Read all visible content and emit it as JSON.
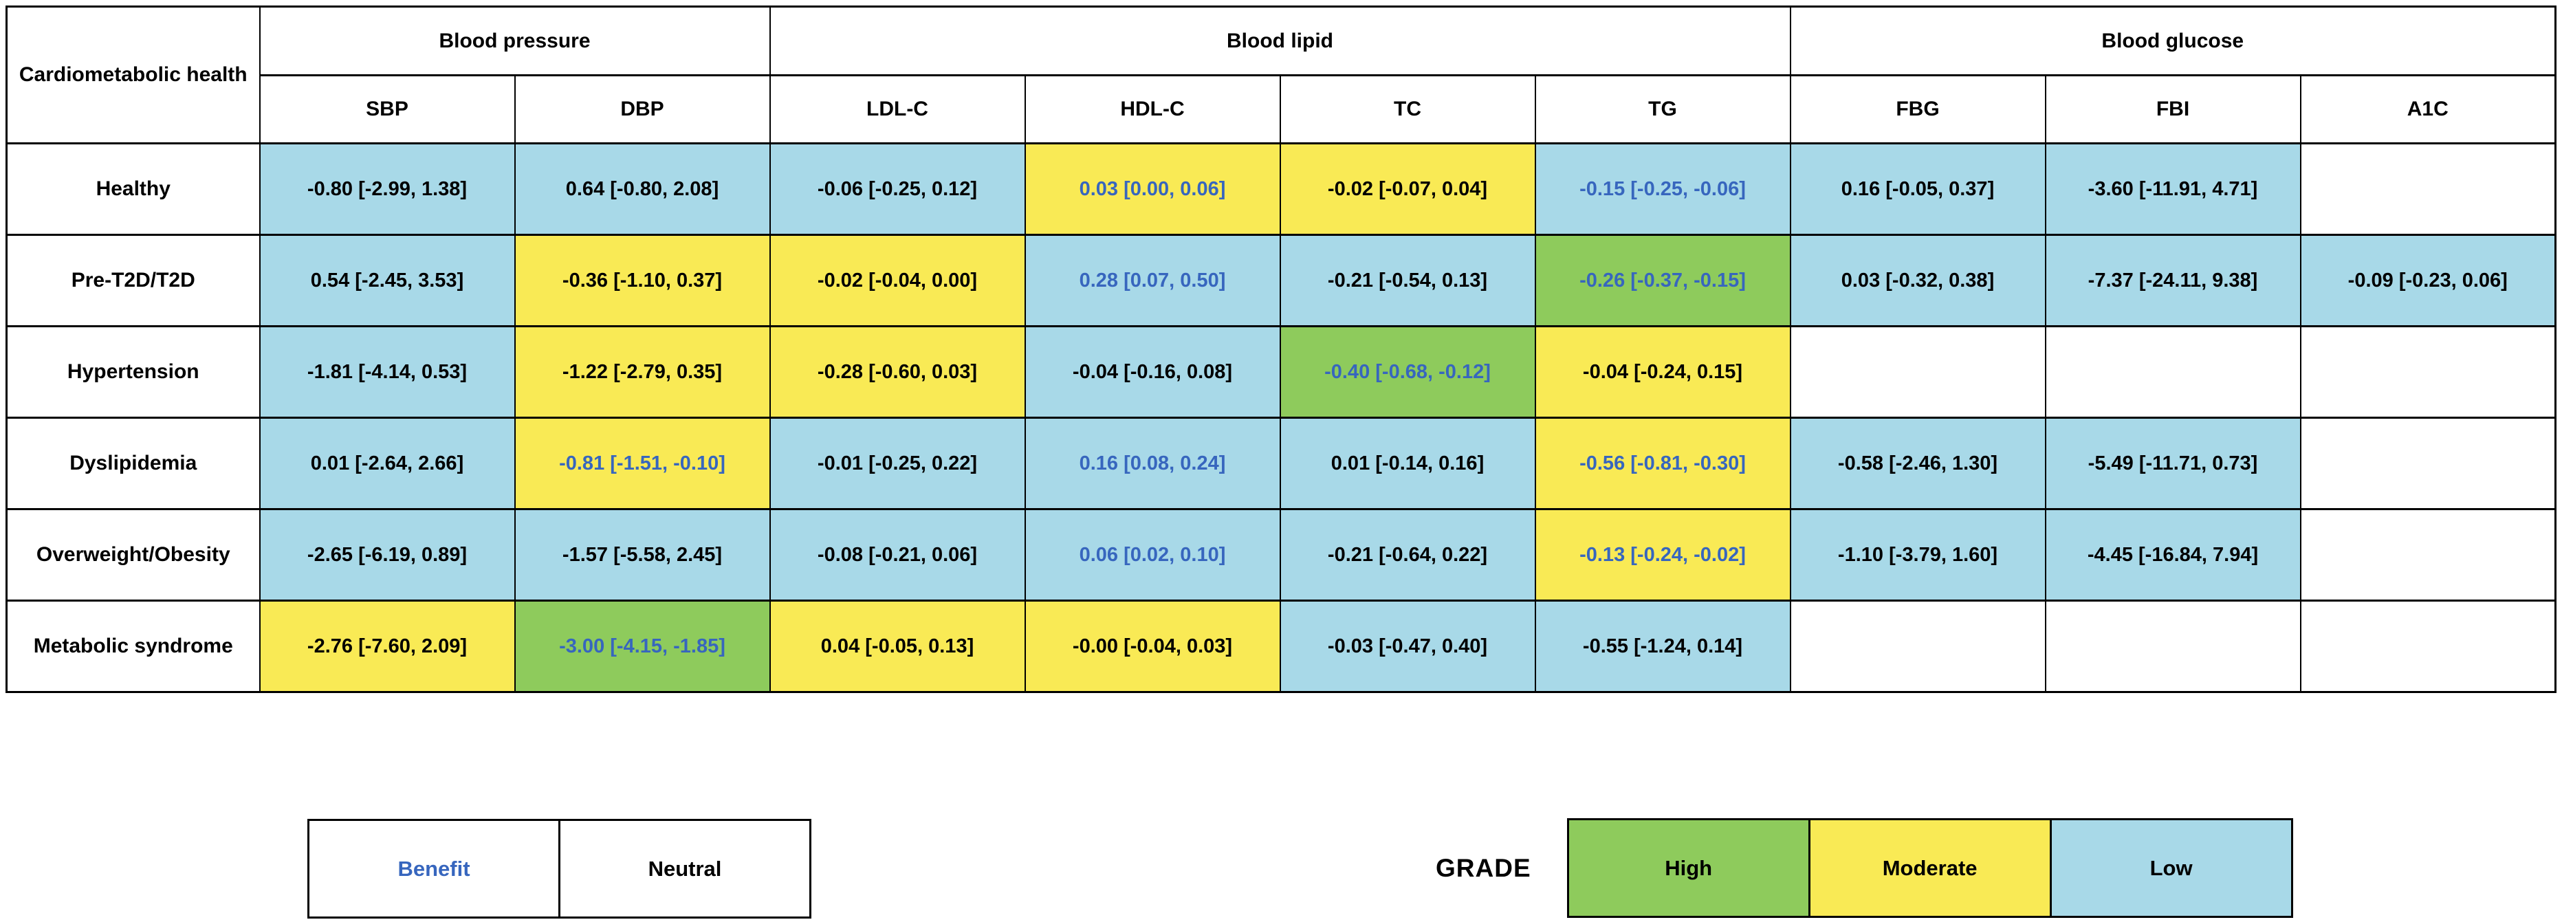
{
  "chart_data": {
    "type": "table",
    "corner_header": "Cardiometabolic health",
    "column_groups": [
      {
        "label": "Blood pressure",
        "span": 2
      },
      {
        "label": "Blood lipid",
        "span": 4
      },
      {
        "label": "Blood glucose",
        "span": 3
      }
    ],
    "columns": [
      "SBP",
      "DBP",
      "LDL-C",
      "HDL-C",
      "TC",
      "TG",
      "FBG",
      "FBI",
      "A1C"
    ],
    "rows": [
      {
        "label": "Healthy",
        "cells": [
          {
            "text": "-0.80 [-2.99, 1.38]",
            "grade": "low",
            "effect": "neutral"
          },
          {
            "text": "0.64 [-0.80, 2.08]",
            "grade": "low",
            "effect": "neutral"
          },
          {
            "text": "-0.06 [-0.25, 0.12]",
            "grade": "low",
            "effect": "neutral"
          },
          {
            "text": "0.03 [0.00, 0.06]",
            "grade": "moderate",
            "effect": "benefit"
          },
          {
            "text": "-0.02 [-0.07, 0.04]",
            "grade": "moderate",
            "effect": "neutral"
          },
          {
            "text": "-0.15 [-0.25, -0.06]",
            "grade": "low",
            "effect": "benefit"
          },
          {
            "text": "0.16 [-0.05, 0.37]",
            "grade": "low",
            "effect": "neutral"
          },
          {
            "text": "-3.60 [-11.91, 4.71]",
            "grade": "low",
            "effect": "neutral"
          },
          {
            "text": "",
            "grade": "none",
            "effect": "neutral"
          }
        ]
      },
      {
        "label": "Pre-T2D/T2D",
        "cells": [
          {
            "text": "0.54 [-2.45, 3.53]",
            "grade": "low",
            "effect": "neutral"
          },
          {
            "text": "-0.36 [-1.10, 0.37]",
            "grade": "moderate",
            "effect": "neutral"
          },
          {
            "text": "-0.02 [-0.04, 0.00]",
            "grade": "moderate",
            "effect": "neutral"
          },
          {
            "text": "0.28 [0.07, 0.50]",
            "grade": "low",
            "effect": "benefit"
          },
          {
            "text": "-0.21 [-0.54, 0.13]",
            "grade": "low",
            "effect": "neutral"
          },
          {
            "text": "-0.26 [-0.37, -0.15]",
            "grade": "high",
            "effect": "benefit"
          },
          {
            "text": "0.03 [-0.32, 0.38]",
            "grade": "low",
            "effect": "neutral"
          },
          {
            "text": "-7.37 [-24.11, 9.38]",
            "grade": "low",
            "effect": "neutral"
          },
          {
            "text": "-0.09 [-0.23, 0.06]",
            "grade": "low",
            "effect": "neutral"
          }
        ]
      },
      {
        "label": "Hypertension",
        "cells": [
          {
            "text": "-1.81 [-4.14, 0.53]",
            "grade": "low",
            "effect": "neutral"
          },
          {
            "text": "-1.22 [-2.79, 0.35]",
            "grade": "moderate",
            "effect": "neutral"
          },
          {
            "text": "-0.28 [-0.60, 0.03]",
            "grade": "moderate",
            "effect": "neutral"
          },
          {
            "text": "-0.04 [-0.16, 0.08]",
            "grade": "low",
            "effect": "neutral"
          },
          {
            "text": "-0.40 [-0.68, -0.12]",
            "grade": "high",
            "effect": "benefit"
          },
          {
            "text": "-0.04 [-0.24, 0.15]",
            "grade": "moderate",
            "effect": "neutral"
          },
          {
            "text": "",
            "grade": "none",
            "effect": "neutral"
          },
          {
            "text": "",
            "grade": "none",
            "effect": "neutral"
          },
          {
            "text": "",
            "grade": "none",
            "effect": "neutral"
          }
        ]
      },
      {
        "label": "Dyslipidemia",
        "cells": [
          {
            "text": "0.01 [-2.64, 2.66]",
            "grade": "low",
            "effect": "neutral"
          },
          {
            "text": "-0.81 [-1.51, -0.10]",
            "grade": "moderate",
            "effect": "benefit"
          },
          {
            "text": "-0.01 [-0.25, 0.22]",
            "grade": "low",
            "effect": "neutral"
          },
          {
            "text": "0.16 [0.08, 0.24]",
            "grade": "low",
            "effect": "benefit"
          },
          {
            "text": "0.01 [-0.14, 0.16]",
            "grade": "low",
            "effect": "neutral"
          },
          {
            "text": "-0.56 [-0.81, -0.30]",
            "grade": "moderate",
            "effect": "benefit"
          },
          {
            "text": "-0.58 [-2.46, 1.30]",
            "grade": "low",
            "effect": "neutral"
          },
          {
            "text": "-5.49 [-11.71, 0.73]",
            "grade": "low",
            "effect": "neutral"
          },
          {
            "text": "",
            "grade": "none",
            "effect": "neutral"
          }
        ]
      },
      {
        "label": "Overweight/Obesity",
        "cells": [
          {
            "text": "-2.65 [-6.19, 0.89]",
            "grade": "low",
            "effect": "neutral"
          },
          {
            "text": "-1.57 [-5.58, 2.45]",
            "grade": "low",
            "effect": "neutral"
          },
          {
            "text": "-0.08 [-0.21, 0.06]",
            "grade": "low",
            "effect": "neutral"
          },
          {
            "text": "0.06 [0.02, 0.10]",
            "grade": "low",
            "effect": "benefit"
          },
          {
            "text": "-0.21 [-0.64, 0.22]",
            "grade": "low",
            "effect": "neutral"
          },
          {
            "text": "-0.13 [-0.24, -0.02]",
            "grade": "moderate",
            "effect": "benefit"
          },
          {
            "text": "-1.10 [-3.79, 1.60]",
            "grade": "low",
            "effect": "neutral"
          },
          {
            "text": "-4.45 [-16.84, 7.94]",
            "grade": "low",
            "effect": "neutral"
          },
          {
            "text": "",
            "grade": "none",
            "effect": "neutral"
          }
        ]
      },
      {
        "label": "Metabolic syndrome",
        "cells": [
          {
            "text": "-2.76 [-7.60, 2.09]",
            "grade": "moderate",
            "effect": "neutral"
          },
          {
            "text": "-3.00 [-4.15, -1.85]",
            "grade": "high",
            "effect": "benefit"
          },
          {
            "text": "0.04 [-0.05, 0.13]",
            "grade": "moderate",
            "effect": "neutral"
          },
          {
            "text": "-0.00 [-0.04, 0.03]",
            "grade": "moderate",
            "effect": "neutral"
          },
          {
            "text": "-0.03 [-0.47, 0.40]",
            "grade": "low",
            "effect": "neutral"
          },
          {
            "text": "-0.55 [-1.24, 0.14]",
            "grade": "low",
            "effect": "neutral"
          },
          {
            "text": "",
            "grade": "none",
            "effect": "neutral"
          },
          {
            "text": "",
            "grade": "none",
            "effect": "neutral"
          },
          {
            "text": "",
            "grade": "none",
            "effect": "neutral"
          }
        ]
      }
    ],
    "grade_colors": {
      "high": "#8ECB5C",
      "moderate": "#F9EA55",
      "low": "#A8D9E8",
      "empty": "#FFFFFF"
    },
    "benefit_text_color": "#3766BE",
    "neutral_text_color": "#000000"
  },
  "legend": {
    "effect": [
      {
        "label": "Benefit",
        "effect": "benefit"
      },
      {
        "label": "Neutral",
        "effect": "neutral"
      }
    ],
    "grade_title": "GRADE",
    "grade": [
      {
        "label": "High",
        "grade": "high"
      },
      {
        "label": "Moderate",
        "grade": "moderate"
      },
      {
        "label": "Low",
        "grade": "low"
      }
    ]
  }
}
